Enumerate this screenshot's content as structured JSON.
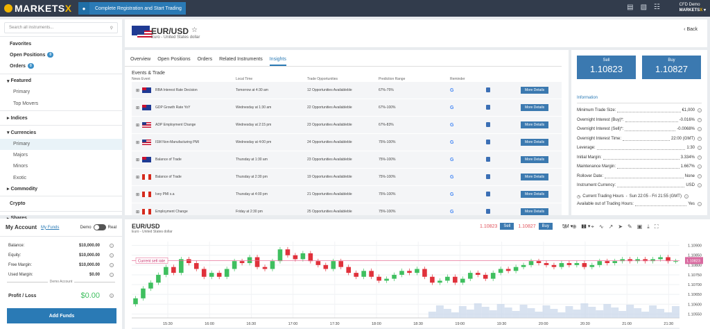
{
  "brand": {
    "name_a": "MARKETS",
    "name_b": "X"
  },
  "topbar": {
    "register": "Complete Registration and Start Trading",
    "account_type": "CFD Demo",
    "account_brand_a": "MARKETS",
    "account_brand_b": "X"
  },
  "sidebar": {
    "search_placeholder": "Search all instruments...",
    "favorites": "Favorites",
    "open_positions": "Open Positions",
    "open_positions_count": "0",
    "orders": "Orders",
    "orders_count": "0",
    "items": [
      {
        "label": "Featured",
        "type": "sect"
      },
      {
        "label": "Primary",
        "type": "sub"
      },
      {
        "label": "Top Movers",
        "type": "sub"
      },
      {
        "label": "Indices",
        "type": "sect"
      },
      {
        "label": "Currencies",
        "type": "sect"
      },
      {
        "label": "Primary",
        "type": "sub",
        "active": true
      },
      {
        "label": "Majors",
        "type": "sub"
      },
      {
        "label": "Minors",
        "type": "sub"
      },
      {
        "label": "Exotic",
        "type": "sub"
      },
      {
        "label": "Commodity",
        "type": "sect"
      },
      {
        "label": "Crypto",
        "type": "bold"
      },
      {
        "label": "Shares",
        "type": "sect"
      }
    ]
  },
  "account": {
    "title": "My Account",
    "funds_link": "My Funds",
    "demo": "Demo",
    "real": "Real",
    "rows": [
      {
        "label": "Balance:",
        "value": "$10,000.00"
      },
      {
        "label": "Equity:",
        "value": "$10,000.00"
      },
      {
        "label": "Free Margin:",
        "value": "$10,000.00"
      },
      {
        "label": "Used Margin:",
        "value": "$0.00"
      }
    ],
    "demo_account": "Demo Account",
    "pl_label": "Profit / Loss",
    "pl_value": "$0.00",
    "add_funds": "Add Funds"
  },
  "instrument": {
    "symbol": "EUR/USD",
    "name": "Euro - United States dollar",
    "back": "Back"
  },
  "tabs": [
    "Overview",
    "Open Positions",
    "Orders",
    "Related Instruments",
    "Insights"
  ],
  "events": {
    "title": "Events & Trade",
    "headers": [
      "News Event",
      "Local Time",
      "Trade Opportunities",
      "Prediction Range",
      "Reminder"
    ],
    "rows": [
      {
        "flag": "au",
        "event": "RBA Interest Rate Decision",
        "time": "Tomorrow at 4:30 am",
        "opps": "12 Opportunities Availableble",
        "range": "67%-75%",
        "btn": "More Details"
      },
      {
        "flag": "au",
        "event": "GDP Growth Rate YoY",
        "time": "Wednesday at 1:30 am",
        "opps": "22 Opportunities Availableble",
        "range": "67%-100%",
        "btn": "More Details"
      },
      {
        "flag": "us",
        "event": "ADP Employment Change",
        "time": "Wednesday at 2:15 pm",
        "opps": "23 Opportunities Availableble",
        "range": "67%-83%",
        "btn": "More Details"
      },
      {
        "flag": "us",
        "event": "ISM Non-Manufacturing PMI",
        "time": "Wednesday at 4:00 pm",
        "opps": "24 Opportunities Availableble",
        "range": "75%-100%",
        "btn": "More Details"
      },
      {
        "flag": "au",
        "event": "Balance of Trade",
        "time": "Thursday at 1:30 am",
        "opps": "23 Opportunities Availableble",
        "range": "75%-100%",
        "btn": "More Details"
      },
      {
        "flag": "ca",
        "event": "Balance of Trade",
        "time": "Thursday at 2:30 pm",
        "opps": "19 Opportunities Availableble",
        "range": "75%-100%",
        "btn": "More Details"
      },
      {
        "flag": "ca",
        "event": "Ivey PMI s.a",
        "time": "Thursday at 4:00 pm",
        "opps": "21 Opportunities Availableble",
        "range": "75%-100%",
        "btn": "More Details"
      },
      {
        "flag": "ca",
        "event": "Employment Change",
        "time": "Friday at 2:30 pm",
        "opps": "25 Opportunities Availableble",
        "range": "75%-100%",
        "btn": "More Details"
      }
    ]
  },
  "trade": {
    "sell_label": "Sell",
    "sell_price": "1.10823",
    "buy_label": "Buy",
    "buy_price": "1.10827"
  },
  "info": {
    "title": "Information",
    "rows": [
      {
        "label": "Minimum Trade Size:",
        "value": "€1,000"
      },
      {
        "label": "Overnight Interest (Buy)*:",
        "value": "-0.016%"
      },
      {
        "label": "Overnight Interest (Sell)*:",
        "value": "-0.0068%"
      },
      {
        "label": "Overnight Interest Time:",
        "value": "22:00 (GMT)"
      },
      {
        "label": "Leverage:",
        "value": "1:30"
      },
      {
        "label": "Initial Margin:",
        "value": "3.334%"
      },
      {
        "label": "Maintenance Margin:",
        "value": "1.667%"
      },
      {
        "label": "Rollover Date:",
        "value": "None"
      },
      {
        "label": "Instrument Currency:",
        "value": "USD"
      }
    ],
    "hours_label": "Current Trading Hours",
    "hours_value": "Sun 22:05 - Fri 21:55 (GMT)",
    "outside_label": "Available out of Trading Hours:",
    "outside_value": "Yes"
  },
  "chart_bar": {
    "symbol": "EUR/USD",
    "name": "Euro - United States dollar",
    "sell_price": "1.10823",
    "sell": "Sell",
    "buy_price": "1.10827",
    "buy": "Buy",
    "timeframe": "5M"
  },
  "chart_data": {
    "type": "candlestick",
    "x_ticks": [
      "15:30",
      "16:00",
      "16:30",
      "17:00",
      "17:30",
      "18:00",
      "18:30",
      "19:00",
      "19:30",
      "20:00",
      "20:30",
      "21:00",
      "21:30"
    ],
    "y_ticks": [
      "1.10900",
      "1.10850",
      "1.10800",
      "1.10750",
      "1.10700",
      "1.10650",
      "1.10600",
      "1.10550"
    ],
    "ylim": [
      1.1053,
      1.1092
    ],
    "current_price": "1.10823",
    "current_price_value": 1.10823,
    "current_label": "Current sell rate",
    "closes": [
      1.1063,
      1.1068,
      1.1071,
      1.1075,
      1.1079,
      1.1076,
      1.1083,
      1.1081,
      1.1078,
      1.1074,
      1.1076,
      1.1074,
      1.1078,
      1.1082,
      1.1081,
      1.1084,
      1.1079,
      1.1078,
      1.1082,
      1.1088,
      1.1085,
      1.1083,
      1.1086,
      1.1082,
      1.108,
      1.1078,
      1.1082,
      1.1079,
      1.1076,
      1.1074,
      1.1077,
      1.1074,
      1.1072,
      1.1073,
      1.1075,
      1.1077,
      1.1076,
      1.1078,
      1.1074,
      1.1071,
      1.1072,
      1.1074,
      1.1071,
      1.1073,
      1.1076,
      1.1075,
      1.1073,
      1.1076,
      1.1078,
      1.1077,
      1.1079,
      1.108,
      1.1082,
      1.1081,
      1.108,
      1.1079,
      1.1081,
      1.108,
      1.1081,
      1.1079,
      1.108,
      1.1082,
      1.1081,
      1.1082,
      1.1083,
      1.1082,
      1.1083,
      1.1082,
      1.1083,
      1.1084,
      1.1082,
      1.1082
    ]
  }
}
